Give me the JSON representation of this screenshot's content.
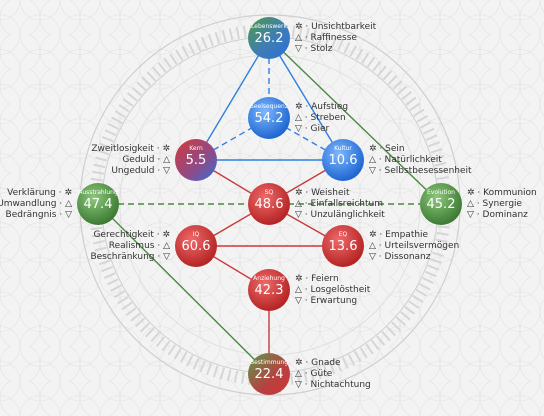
{
  "colors": {
    "blue": "#2f7fe0",
    "red": "#c73a3a",
    "green": "#4a8a3f",
    "background": "#f3f3f3"
  },
  "nodes": [
    {
      "id": "lebenswerk",
      "title": "Lebenswerk",
      "value": "26.2",
      "fill": "lebenswerk-grad",
      "labels": [
        "Unsichtbarkeit",
        "Raffinesse",
        "Stolz"
      ],
      "side": "right"
    },
    {
      "id": "seelsequenz",
      "title": "Seelsequenz",
      "value": "54.2",
      "fill": "blue-grad",
      "labels": [
        "Aufstieg",
        "Streben",
        "Gier"
      ],
      "side": "right"
    },
    {
      "id": "kern",
      "title": "Kern",
      "value": "5.5",
      "fill": "kern-grad",
      "labels": [
        "Zweitlosigkeit",
        "Geduld",
        "Ungeduld"
      ],
      "side": "left"
    },
    {
      "id": "kultur",
      "title": "Kultur",
      "value": "10.6",
      "fill": "blue-grad",
      "labels": [
        "Sein",
        "Natürlichkeit",
        "Selbstbesessenheit"
      ],
      "side": "right"
    },
    {
      "id": "ausstrahlung",
      "title": "Ausstrahlung",
      "value": "47.4",
      "fill": "green-grad",
      "labels": [
        "Verklärung",
        "Umwandlung",
        "Bedrängnis"
      ],
      "side": "left"
    },
    {
      "id": "sq",
      "title": "SQ",
      "value": "48.6",
      "fill": "red-grad",
      "labels": [
        "Weisheit",
        "Einfallsreichtum",
        "Unzulänglichkeit"
      ],
      "side": "right"
    },
    {
      "id": "evolution",
      "title": "Evolution",
      "value": "45.2",
      "fill": "green-grad",
      "labels": [
        "Kommunion",
        "Synergie",
        "Dominanz"
      ],
      "side": "right"
    },
    {
      "id": "iq",
      "title": "IQ",
      "value": "60.6",
      "fill": "red-grad",
      "labels": [
        "Gerechtigkeit",
        "Realismus",
        "Beschränkung"
      ],
      "side": "left"
    },
    {
      "id": "eq",
      "title": "EQ",
      "value": "13.6",
      "fill": "red-grad",
      "labels": [
        "Empathie",
        "Urteilsvermögen",
        "Dissonanz"
      ],
      "side": "right"
    },
    {
      "id": "anziehung",
      "title": "Anziehung",
      "value": "42.3",
      "fill": "red-grad",
      "labels": [
        "Feiern",
        "Losgelöstheit",
        "Erwartung"
      ],
      "side": "right"
    },
    {
      "id": "bestimmung",
      "title": "Bestimmung",
      "value": "22.4",
      "fill": "bestimmung-grad",
      "labels": [
        "Gnade",
        "Güte",
        "Nichtachtung"
      ],
      "side": "right"
    }
  ],
  "icons": [
    "sun-icon",
    "triangle-up-icon",
    "triangle-down-icon"
  ]
}
